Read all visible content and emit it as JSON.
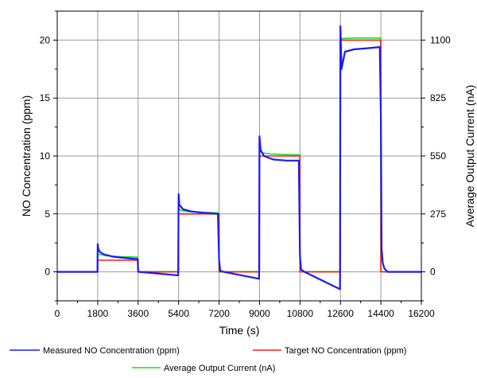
{
  "chart_data": {
    "type": "line",
    "xlabel": "Time (s)",
    "ylabel_left": "NO Concentration (ppm)",
    "ylabel_right": "Average Output Current (nA)",
    "xlim": [
      0,
      16200
    ],
    "ylim_left": [
      -2.5,
      22.5
    ],
    "ylim_right": [
      -137.5,
      1237.5
    ],
    "x_ticks": [
      0,
      1800,
      3600,
      5400,
      7200,
      9000,
      10800,
      12600,
      14400,
      16200
    ],
    "x_tick_labels": [
      "0",
      "1800",
      "3600",
      "5400",
      "7200",
      "9000",
      "10800",
      "12600",
      "14400",
      "16200"
    ],
    "y_left_ticks": [
      0,
      5,
      10,
      15,
      20
    ],
    "y_left_tick_labels": [
      "0",
      "5",
      "10",
      "15",
      "20"
    ],
    "y_right_ticks": [
      0,
      275,
      550,
      825,
      1100
    ],
    "y_right_tick_labels": [
      "0",
      "275",
      "550",
      "825",
      "1100"
    ],
    "grid": true,
    "legend_position": "bottom",
    "series": [
      {
        "name": "Measured NO Concentration (ppm)",
        "color": "#1a1aff",
        "axis": "left",
        "x": [
          0,
          1790,
          1800,
          1830,
          1900,
          2100,
          2500,
          3000,
          3580,
          3600,
          3650,
          5380,
          5400,
          5430,
          5600,
          6000,
          6500,
          7150,
          7200,
          7250,
          7400,
          8980,
          9000,
          9050,
          9200,
          9600,
          10200,
          10750,
          10800,
          10850,
          11000,
          12580,
          12600,
          12650,
          12800,
          13200,
          13800,
          14350,
          14400,
          14430,
          14480,
          14550,
          14700,
          16200
        ],
        "y": [
          0,
          0,
          2.4,
          2.0,
          1.7,
          1.5,
          1.3,
          1.2,
          1.1,
          0,
          0,
          -0.3,
          6.7,
          5.8,
          5.4,
          5.2,
          5.1,
          5.0,
          1.0,
          0.1,
          0,
          -0.6,
          11.7,
          10.5,
          10.0,
          9.7,
          9.6,
          9.6,
          1.4,
          0.2,
          0,
          -1.5,
          21.2,
          17.5,
          19.0,
          19.2,
          19.3,
          19.4,
          13.4,
          2.0,
          0.8,
          0.3,
          0.0,
          0
        ]
      },
      {
        "name": "Target NO Concentration (ppm)",
        "color": "#ff1a1a",
        "axis": "left",
        "x": [
          0,
          1800,
          1800,
          3600,
          3600,
          5400,
          5400,
          7200,
          7200,
          9000,
          9000,
          10800,
          10800,
          12600,
          12600,
          14400,
          14400,
          16200
        ],
        "y": [
          0,
          0,
          1,
          1,
          0,
          0,
          5,
          5,
          0,
          0,
          10,
          10,
          0,
          0,
          20,
          20,
          0,
          0
        ]
      },
      {
        "name": "Average Output Current (nA)",
        "color": "#1fdb1f",
        "axis": "right",
        "x": [
          0,
          1790,
          1800,
          1900,
          2200,
          2800,
          3580,
          3600,
          3650,
          5390,
          5400,
          5500,
          5800,
          6400,
          7190,
          7200,
          7260,
          7500,
          8990,
          9000,
          9100,
          9500,
          10000,
          10790,
          10800,
          10860,
          11100,
          12590,
          12600,
          12700,
          13200,
          14390,
          14400,
          14460,
          14600,
          16200
        ],
        "y": [
          0,
          0,
          85,
          82,
          76,
          72,
          70,
          0,
          0,
          0,
          300,
          292,
          286,
          283,
          280,
          0,
          0,
          0,
          0,
          578,
          565,
          560,
          557,
          555,
          0,
          0,
          0,
          0,
          1100,
          1108,
          1110,
          1110,
          0,
          0,
          0,
          0
        ]
      }
    ]
  }
}
